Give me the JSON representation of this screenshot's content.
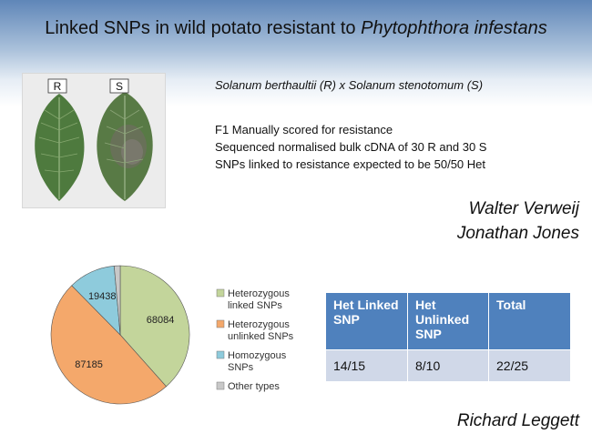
{
  "title": {
    "main": "Linked SNPs in wild potato resistant to ",
    "species": "Phytophthora infestans"
  },
  "photo": {
    "label_r": "R",
    "label_s": "S"
  },
  "cross": "Solanum berthaultii (R) x Solanum stenotomum (S)",
  "notes": [
    "F1 Manually scored for resistance",
    "Sequenced normalised bulk cDNA of 30 R and 30 S",
    "SNPs linked to resistance expected to be 50/50 Het"
  ],
  "authors": [
    "Walter Verweij",
    "Jonathan Jones",
    "Richard Leggett"
  ],
  "chart_data": {
    "type": "pie",
    "labels": [
      "Heterozygous linked SNPs",
      "Heterozygous unlinked SNPs",
      "Homozygous SNPs",
      "Other types"
    ],
    "values": [
      68084,
      87185,
      19438,
      2481
    ],
    "colors": [
      "#c3d59b",
      "#f4a86b",
      "#8ecbdc",
      "#c8c8c8"
    ],
    "legend_lines": [
      [
        "Heterozygous",
        "linked SNPs"
      ],
      [
        "Heterozygous",
        "unlinked SNPs"
      ],
      [
        "Homozygous",
        "SNPs"
      ],
      [
        "Other types"
      ]
    ],
    "legend_position": "right"
  },
  "table": {
    "headers": [
      [
        "Het Linked",
        "SNP"
      ],
      [
        "Het",
        "Unlinked",
        "SNP"
      ],
      [
        "Total"
      ]
    ],
    "rows": [
      [
        "14/15",
        "8/10",
        "22/25"
      ]
    ]
  }
}
